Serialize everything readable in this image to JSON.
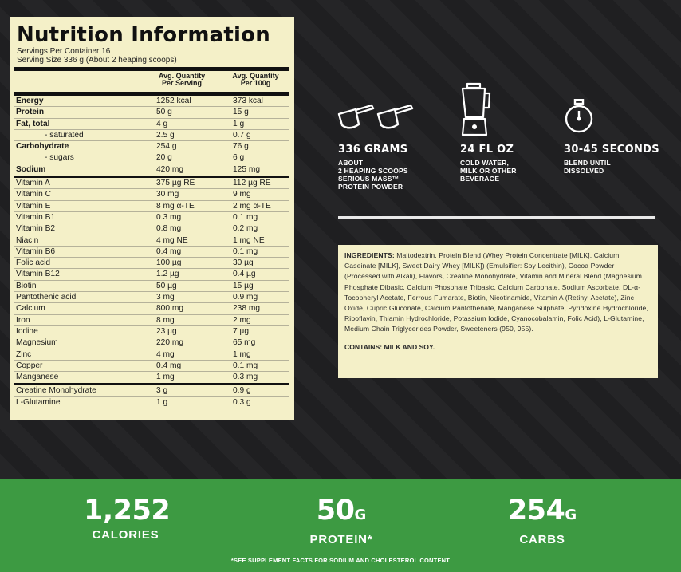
{
  "panel": {
    "title": "Nutrition Information",
    "servings": "Servings Per Container 16",
    "serving_size": "Serving Size 336 g (About 2 heaping scoops)",
    "col_serving_l1": "Avg. Quantity",
    "col_serving_l2": "Per Serving",
    "col_100g_l1": "Avg. Quantity",
    "col_100g_l2": "Per 100g",
    "group1": [
      {
        "name": "Energy",
        "serving": "1252 kcal",
        "per100": "373 kcal",
        "bold": true
      },
      {
        "name": "Protein",
        "serving": "50 g",
        "per100": "15 g",
        "bold": true
      },
      {
        "name": "Fat, total",
        "serving": "4 g",
        "per100": "1 g",
        "bold": true
      },
      {
        "name": "- saturated",
        "serving": "2.5 g",
        "per100": "0.7 g",
        "sub": true
      },
      {
        "name": "Carbohydrate",
        "serving": "254 g",
        "per100": "76 g",
        "bold": true
      },
      {
        "name": "- sugars",
        "serving": "20 g",
        "per100": "6 g",
        "sub": true
      },
      {
        "name": "Sodium",
        "serving": "420 mg",
        "per100": "125 mg",
        "bold": true
      }
    ],
    "group2": [
      {
        "name": "Vitamin A",
        "serving": "375 µg RE",
        "per100": "112 µg RE"
      },
      {
        "name": "Vitamin C",
        "serving": "30 mg",
        "per100": "9 mg"
      },
      {
        "name": "Vitamin E",
        "serving": "8 mg α-TE",
        "per100": "2 mg α-TE"
      },
      {
        "name": "Vitamin B1",
        "serving": "0.3 mg",
        "per100": "0.1 mg"
      },
      {
        "name": "Vitamin B2",
        "serving": "0.8 mg",
        "per100": "0.2 mg"
      },
      {
        "name": "Niacin",
        "serving": "4 mg NE",
        "per100": "1 mg NE"
      },
      {
        "name": "Vitamin B6",
        "serving": "0.4 mg",
        "per100": "0.1 mg"
      },
      {
        "name": "Folic acid",
        "serving": "100 µg",
        "per100": "30 µg"
      },
      {
        "name": "Vitamin B12",
        "serving": "1.2 µg",
        "per100": "0.4 µg"
      },
      {
        "name": "Biotin",
        "serving": "50 µg",
        "per100": "15 µg"
      },
      {
        "name": "Pantothenic acid",
        "serving": "3 mg",
        "per100": "0.9 mg"
      },
      {
        "name": "Calcium",
        "serving": "800 mg",
        "per100": "238 mg"
      },
      {
        "name": "Iron",
        "serving": "8 mg",
        "per100": "2 mg"
      },
      {
        "name": "Iodine",
        "serving": "23 µg",
        "per100": "7 µg"
      },
      {
        "name": "Magnesium",
        "serving": "220 mg",
        "per100": "65 mg"
      },
      {
        "name": "Zinc",
        "serving": "4 mg",
        "per100": "1 mg"
      },
      {
        "name": "Copper",
        "serving": "0.4 mg",
        "per100": "0.1 mg"
      },
      {
        "name": "Manganese",
        "serving": "1 mg",
        "per100": "0.3 mg"
      }
    ],
    "group3": [
      {
        "name": "Creatine Monohydrate",
        "serving": "3 g",
        "per100": "0.9 g"
      },
      {
        "name": "L-Glutamine",
        "serving": "1 g",
        "per100": "0.3 g"
      }
    ]
  },
  "info": {
    "scoops_big": "336 GRAMS",
    "scoops_l1": "ABOUT",
    "scoops_l2": "2 HEAPING SCOOPS",
    "scoops_l3": "SERIOUS MASS™",
    "scoops_l4": "PROTEIN POWDER",
    "blender_big": "24 FL OZ",
    "blender_l1": "COLD WATER,",
    "blender_l2": "MILK OR OTHER",
    "blender_l3": "BEVERAGE",
    "timer_big": "30-45 SECONDS",
    "timer_l1": "BLEND UNTIL",
    "timer_l2": "DISSOLVED"
  },
  "ingredients": {
    "label": "INGREDIENTS:",
    "text": " Maltodextrin, Protein Blend (Whey Protein Concentrate [MILK], Calcium Caseinate [MILK], Sweet Dairy Whey [MILK]) (Emulsifier: Soy Lecithin), Cocoa Powder (Processed with Alkali), Flavors, Creatine Monohydrate, Vitamin and Mineral Blend (Magnesium Phosphate Dibasic, Calcium Phosphate Tribasic, Calcium Carbonate, Sodium Ascorbate, DL-α-Tocopheryl Acetate, Ferrous Fumarate, Biotin, Nicotinamide, Vitamin A (Retinyl Acetate), Zinc Oxide, Cupric Gluconate, Calcium Pantothenate, Manganese Sulphate, Pyridoxine Hydrochloride, Riboflavin, Thiamin Hydrochloride, Potassium Iodide, Cyanocobalamin, Folic Acid), L-Glutamine, Medium Chain Triglycerides Powder, Sweeteners (950, 955).",
    "contains": "CONTAINS: MILK AND SOY."
  },
  "stats": {
    "calories_num": "1,252",
    "calories_label": "CALORIES",
    "protein_num": "50",
    "protein_unit": "G",
    "protein_label": "PROTEIN*",
    "carbs_num": "254",
    "carbs_unit": "G",
    "carbs_label": "CARBS",
    "footnote": "*SEE SUPPLEMENT FACTS FOR SODIUM AND CHOLESTEROL CONTENT"
  },
  "colors": {
    "panel_bg": "#f4f0c8",
    "green": "#3d9a42",
    "dark_bg": "#1f1f21"
  },
  "icons": [
    "scoop-icon",
    "blender-icon",
    "timer-icon"
  ]
}
